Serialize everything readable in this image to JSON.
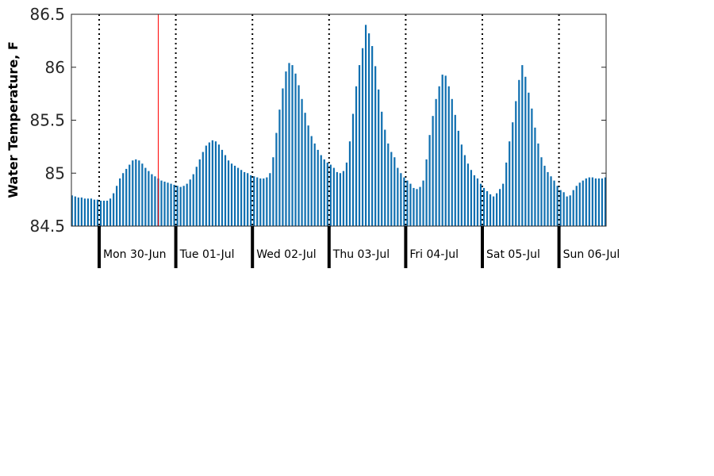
{
  "chart_data": {
    "type": "bar",
    "ylabel": "Water Temperature, F",
    "xlabel": "",
    "title": "",
    "ylim": [
      84.5,
      86.5
    ],
    "yticks": [
      84.5,
      85,
      85.5,
      86,
      86.5
    ],
    "grid": false,
    "bar_color": "#0f6fb0",
    "marker_color": "#ff0000",
    "marker_index": 27,
    "samples_per_day": 24,
    "series_start_hour_offset": -9,
    "days": [
      "Mon 30-Jun",
      "Tue 01-Jul",
      "Wed 02-Jul",
      "Thu 03-Jul",
      "Fri 04-Jul",
      "Sat 05-Jul",
      "Sun 06-Jul"
    ],
    "values": [
      84.79,
      84.78,
      84.77,
      84.77,
      84.76,
      84.76,
      84.76,
      84.75,
      84.75,
      84.74,
      84.74,
      84.74,
      84.76,
      84.81,
      84.88,
      84.95,
      85.0,
      85.04,
      85.08,
      85.12,
      85.13,
      85.12,
      85.09,
      85.05,
      85.02,
      84.99,
      84.97,
      84.95,
      84.93,
      84.92,
      84.91,
      84.9,
      84.89,
      84.88,
      84.87,
      84.88,
      84.9,
      84.94,
      84.99,
      85.06,
      85.13,
      85.2,
      85.26,
      85.29,
      85.31,
      85.3,
      85.27,
      85.22,
      85.17,
      85.12,
      85.09,
      85.07,
      85.05,
      85.03,
      85.01,
      85.0,
      84.98,
      84.97,
      84.96,
      84.95,
      84.95,
      84.96,
      85.0,
      85.15,
      85.38,
      85.6,
      85.8,
      85.96,
      86.04,
      86.02,
      85.94,
      85.83,
      85.7,
      85.57,
      85.45,
      85.35,
      85.28,
      85.22,
      85.17,
      85.13,
      85.1,
      85.08,
      85.05,
      85.01,
      85.0,
      85.02,
      85.1,
      85.3,
      85.56,
      85.82,
      86.02,
      86.18,
      86.4,
      86.32,
      86.2,
      86.01,
      85.79,
      85.58,
      85.41,
      85.28,
      85.2,
      85.15,
      85.05,
      85.0,
      84.96,
      84.93,
      84.9,
      84.86,
      84.85,
      84.87,
      84.93,
      85.13,
      85.36,
      85.54,
      85.7,
      85.82,
      85.93,
      85.92,
      85.82,
      85.7,
      85.55,
      85.4,
      85.27,
      85.17,
      85.09,
      85.03,
      84.98,
      84.95,
      84.9,
      84.86,
      84.83,
      84.8,
      84.78,
      84.81,
      84.85,
      84.9,
      85.1,
      85.3,
      85.48,
      85.68,
      85.88,
      86.02,
      85.91,
      85.76,
      85.61,
      85.43,
      85.28,
      85.15,
      85.07,
      85.01,
      84.97,
      84.93,
      84.88,
      84.84,
      84.82,
      84.78,
      84.79,
      84.84,
      84.88,
      84.91,
      84.93,
      84.95,
      84.96,
      84.96,
      84.95,
      84.95,
      84.95,
      84.96,
      84.97,
      84.95
    ]
  }
}
